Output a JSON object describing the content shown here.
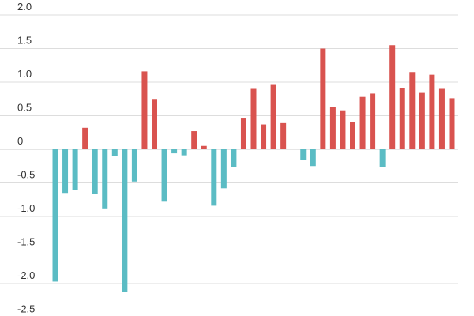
{
  "chart_data": {
    "type": "bar",
    "title": "",
    "xlabel": "",
    "ylabel": "",
    "ylim": [
      -2.5,
      2.0
    ],
    "y_ticks": [
      2.0,
      1.5,
      1.0,
      0.5,
      0,
      -0.5,
      -1.0,
      -1.5,
      -2.0,
      -2.5
    ],
    "y_tick_labels": [
      "2.0",
      "1.5",
      "1.0",
      "0.5",
      "0",
      "-0.5",
      "-1.0",
      "-1.5",
      "-2.0",
      "-2.5"
    ],
    "grid": true,
    "legend": "none",
    "positive_color": "#d9534f",
    "negative_color": "#5bbcc4",
    "values": [
      -1.97,
      -0.65,
      -0.6,
      0.32,
      -0.67,
      -0.88,
      -0.1,
      -2.12,
      -0.48,
      1.16,
      0.75,
      -0.78,
      -0.06,
      -0.09,
      0.27,
      0.05,
      -0.84,
      -0.58,
      -0.26,
      0.47,
      0.9,
      0.37,
      0.97,
      0.39,
      0.0,
      -0.16,
      -0.25,
      1.5,
      0.63,
      0.58,
      0.4,
      0.78,
      0.83,
      -0.27,
      1.55,
      0.91,
      1.15,
      0.84,
      1.11,
      0.9,
      0.76
    ]
  }
}
